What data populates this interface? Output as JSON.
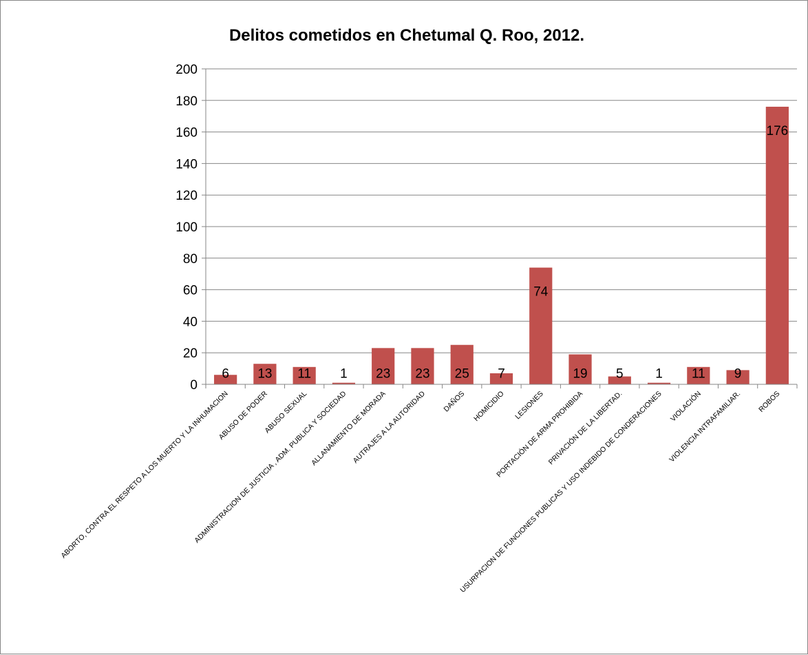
{
  "chart_data": {
    "type": "bar",
    "title": "Delitos cometidos en Chetumal Q. Roo, 2012.",
    "categories": [
      "ABORTO, CONTRA EL RESPETO A LOS MUERTO Y LA INHUMACION",
      "ABUSO DE PODER",
      "ABUSO SEXUAL",
      "ADMINISTRACION DE JUSTICIA , ADM. PUBLICA Y SOCIEDAD",
      "ALLANAMIENTO DE MORADA",
      "AUTRAJES A LA AUTORIDAD",
      "DAÑOS",
      "HOMICIDIO",
      "LESIONES",
      "PORTACIÓN DE ARMA PROHIBIDA",
      "PRIVACIÓN DE LA LIBERTAD.",
      "USURPACION DE FUNCIONES PUBLICAS Y USO INDEBIDO DE CONDERACIONES",
      "VIOLACIÓN",
      "VIOLENCIA INTRAFAMILIAR.",
      "ROBOS"
    ],
    "values": [
      6,
      13,
      11,
      1,
      23,
      23,
      25,
      7,
      74,
      19,
      5,
      1,
      11,
      9,
      176
    ],
    "ylim": [
      0,
      200
    ],
    "yticks": [
      0,
      20,
      40,
      60,
      80,
      100,
      120,
      140,
      160,
      180,
      200
    ],
    "grid": true,
    "legend": "none",
    "bar_color": "#c0504d",
    "grid_color": "#868686",
    "data_labels": true
  }
}
